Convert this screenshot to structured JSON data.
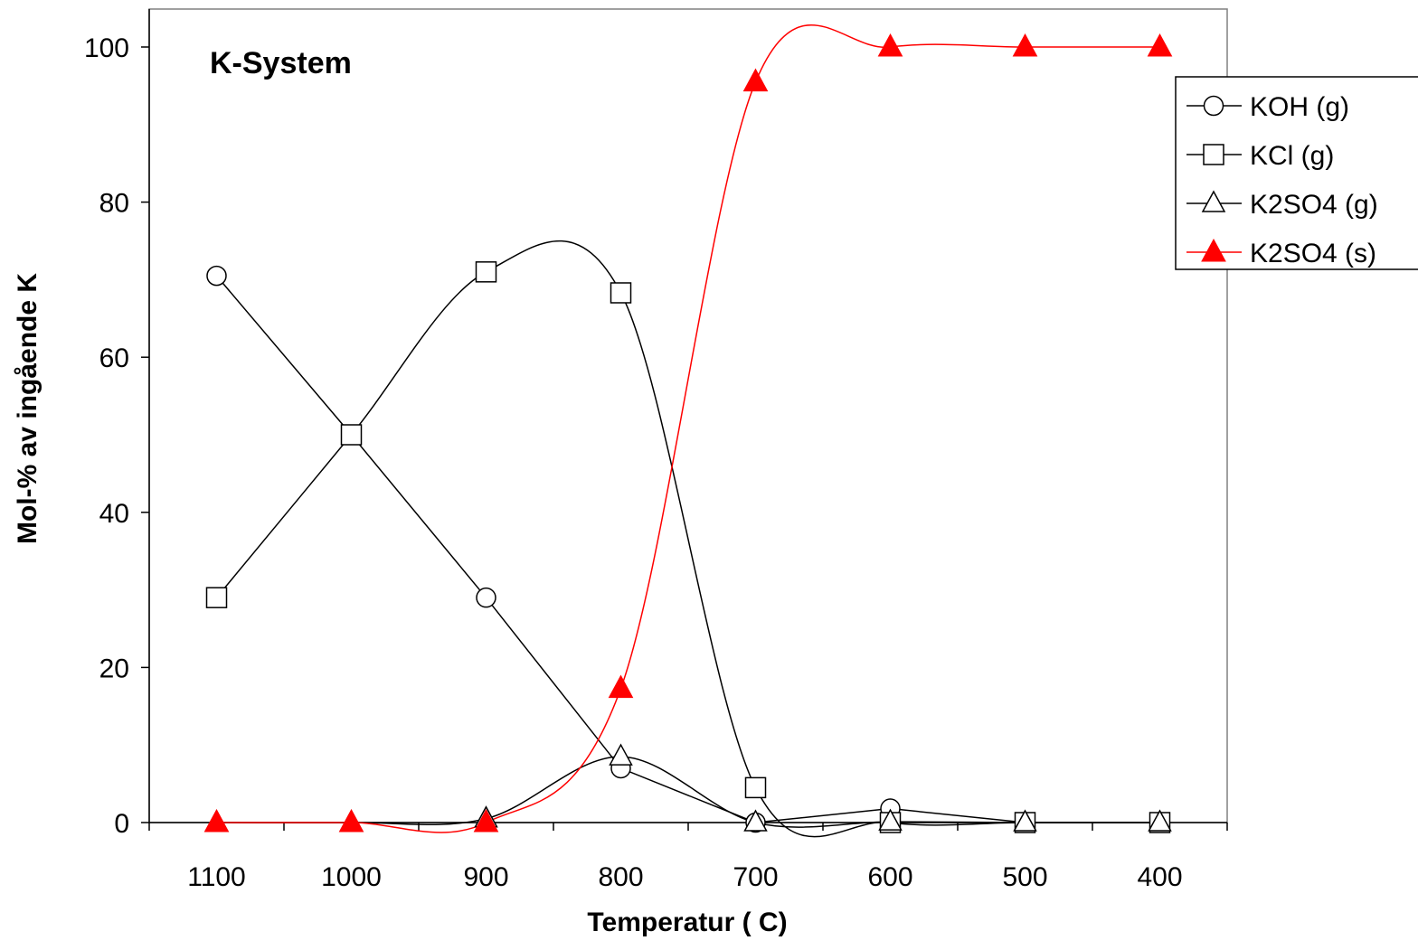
{
  "chart_data": {
    "type": "line",
    "title": "K-System",
    "xlabel": "Temperatur ( C)",
    "ylabel": "Mol-% av ingående K",
    "categories": [
      "1100",
      "1000",
      "900",
      "800",
      "700",
      "600",
      "500",
      "400"
    ],
    "yticks": [
      "0",
      "20",
      "40",
      "60",
      "80",
      "100"
    ],
    "ylim": [
      0,
      100
    ],
    "grid": false,
    "legend_position": "right",
    "series": [
      {
        "name": "KOH (g)",
        "marker": "open-circle",
        "color": "#000000",
        "values": [
          70.5,
          50,
          29,
          7,
          0,
          1.8,
          0,
          0
        ]
      },
      {
        "name": "KCl (g)",
        "marker": "open-square",
        "color": "#000000",
        "values": [
          29,
          50,
          71,
          68.3,
          4.5,
          0,
          0,
          0
        ]
      },
      {
        "name": "K2SO4 (g)",
        "marker": "open-triangle",
        "color": "#000000",
        "values": [
          0,
          0,
          0.5,
          8.5,
          0,
          0.1,
          0,
          0
        ]
      },
      {
        "name": "K2SO4 (s)",
        "marker": "filled-triangle",
        "color": "#ff0000",
        "values": [
          0,
          0,
          0,
          17.3,
          95.5,
          100,
          100,
          100
        ]
      }
    ]
  }
}
